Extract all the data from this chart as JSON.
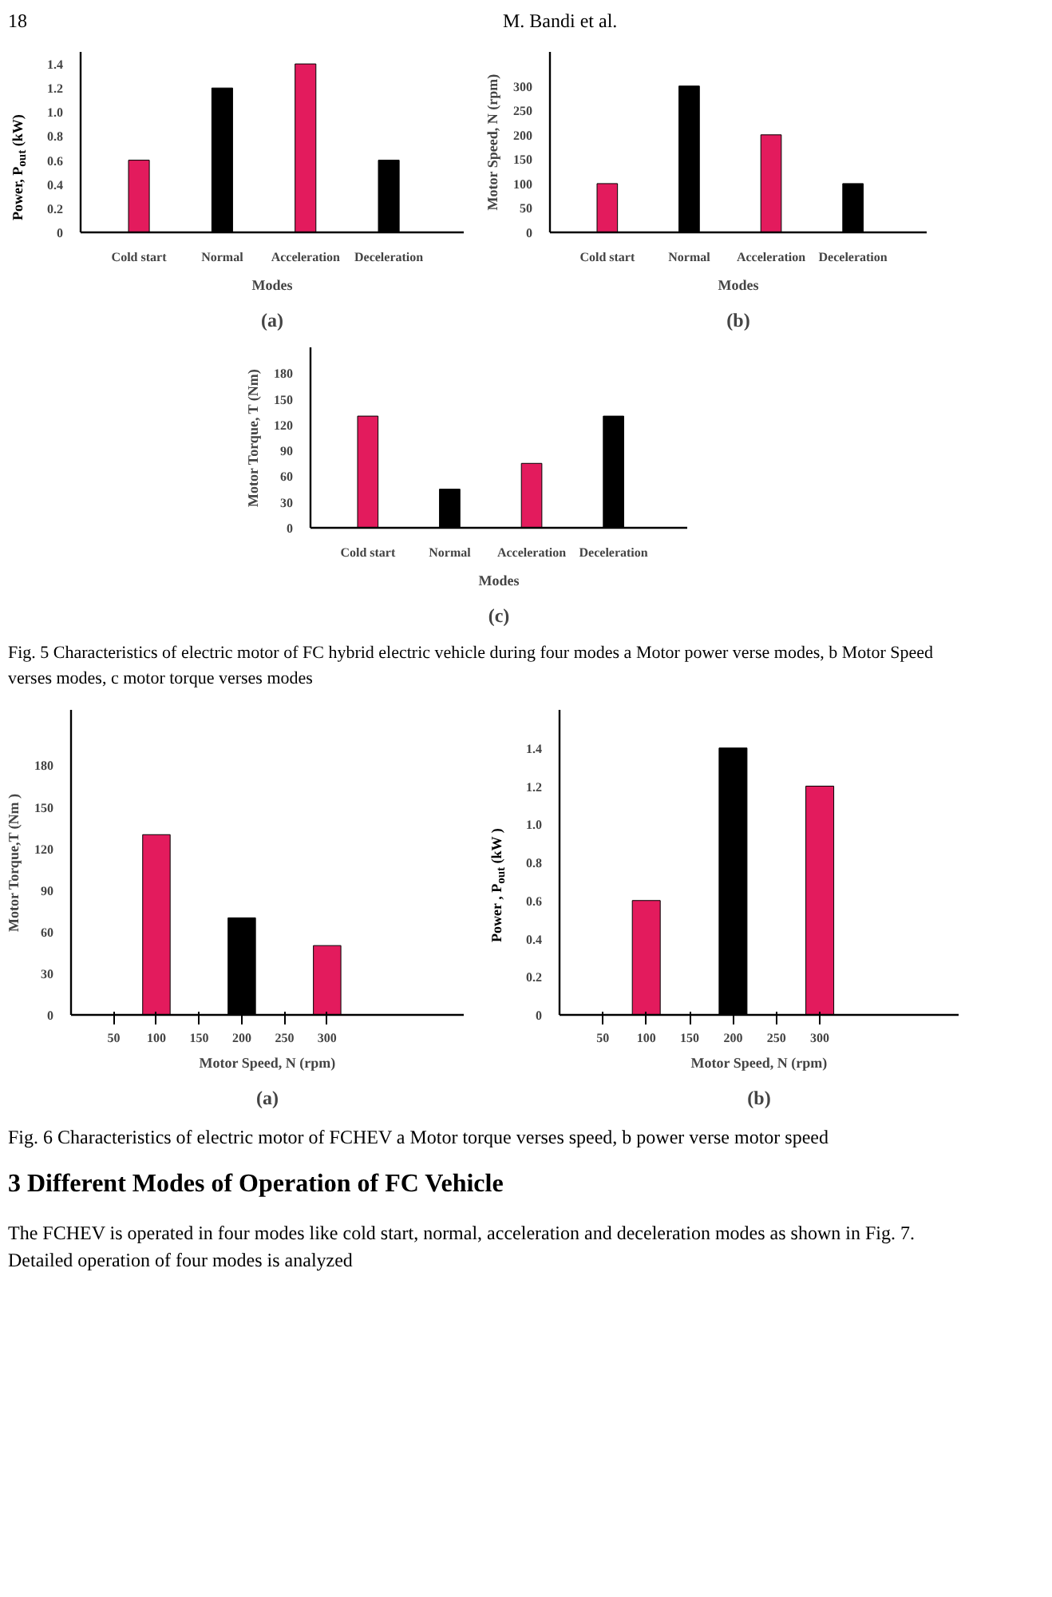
{
  "chart_data": [
    {
      "type": "bar",
      "title": "(a)",
      "xlabel": "Modes",
      "ylabel": "Power, P$_{out}$ (kW)",
      "categories": [
        "Cold start",
        "Normal",
        "Acceleration",
        "Deceleration"
      ],
      "values": [
        0.6,
        1.2,
        1.4,
        0.6
      ],
      "colors": [
        "#e31b5d",
        "#000000",
        "#e31b5d",
        "#000000"
      ],
      "ylim": [
        0,
        1.5
      ],
      "yticks": [
        0,
        0.2,
        0.4,
        0.6,
        0.8,
        {
          "value": 1.0,
          "label": "1.0"
        },
        1.2,
        1.4
      ],
      "annotations": [
        "18",
        "M. Bandi et al."
      ]
    },
    {
      "type": "bar",
      "title": "(b)",
      "xlabel": "Modes",
      "ylabel": "Motor Speed, N (rpm)",
      "categories": [
        "Cold start",
        "Normal",
        "Acceleration",
        "Deceleration"
      ],
      "values": [
        100,
        300,
        200,
        100
      ],
      "colors": [
        "#e31b5d",
        "#000000",
        "#e31b5d",
        "#000000"
      ],
      "ylim": [
        0,
        370
      ],
      "yticks": [
        0,
        50,
        100,
        150,
        200,
        250,
        300
      ]
    },
    {
      "type": "bar",
      "title": "(c)",
      "xlabel": "Modes",
      "ylabel": "Motor Torque, T (Nm)",
      "categories": [
        "Cold start",
        "Normal",
        "Acceleration",
        "Deceleration"
      ],
      "values": [
        130,
        45,
        75,
        130
      ],
      "colors": [
        "#e31b5d",
        "#000000",
        "#e31b5d",
        "#000000"
      ],
      "ylim": [
        0,
        210
      ],
      "yticks": [
        0,
        30,
        60,
        90,
        120,
        150,
        180
      ],
      "annotations": [
        "Fig. 5  Characteristics of electric motor of FC hybrid electric vehicle during four modes a Motor power verse modes, b Motor Speed verses modes, c motor torque verses modes"
      ]
    },
    {
      "type": "bar",
      "title": "(a)",
      "xlabel": "Motor Speed, N (rpm)",
      "ylabel": "Motor Torque,T (Nm )",
      "x": [
        100,
        200,
        300
      ],
      "values": [
        130,
        70,
        50
      ],
      "colors": [
        "#e31b5d",
        "#000000",
        "#e31b5d"
      ],
      "xlim": [
        0,
        460
      ],
      "xticks": [
        50,
        100,
        150,
        200,
        250,
        300
      ],
      "ylim": [
        0,
        220
      ],
      "yticks": [
        0,
        30,
        60,
        90,
        120,
        150,
        180
      ]
    },
    {
      "type": "bar",
      "title": "(b)",
      "xlabel": "Motor Speed, N (rpm)",
      "ylabel": "Power , P$_{out}$ (kW )",
      "x": [
        100,
        200,
        300
      ],
      "values": [
        0.6,
        1.4,
        1.2
      ],
      "colors": [
        "#e31b5d",
        "#000000",
        "#e31b5d"
      ],
      "xlim": [
        0,
        460
      ],
      "xticks": [
        50,
        100,
        150,
        200,
        250,
        300
      ],
      "ylim": [
        0,
        1.6
      ],
      "yticks": [
        0,
        0.2,
        0.4,
        0.6,
        0.8,
        {
          "value": 1.0,
          "label": "1.0"
        },
        1.2,
        1.4
      ],
      "annotations": [
        "Fig. 6  Characteristics of electric motor of FCHEV a Motor torque verses speed, b power verse motor speed",
        "3   Different Modes of Operation of FC Vehicle",
        "The FCHEV is operated in four modes like cold start, normal, acceleration and deceleration modes as shown in Fig. 7. Detailed operation of four modes is analyzed"
      ]
    }
  ]
}
